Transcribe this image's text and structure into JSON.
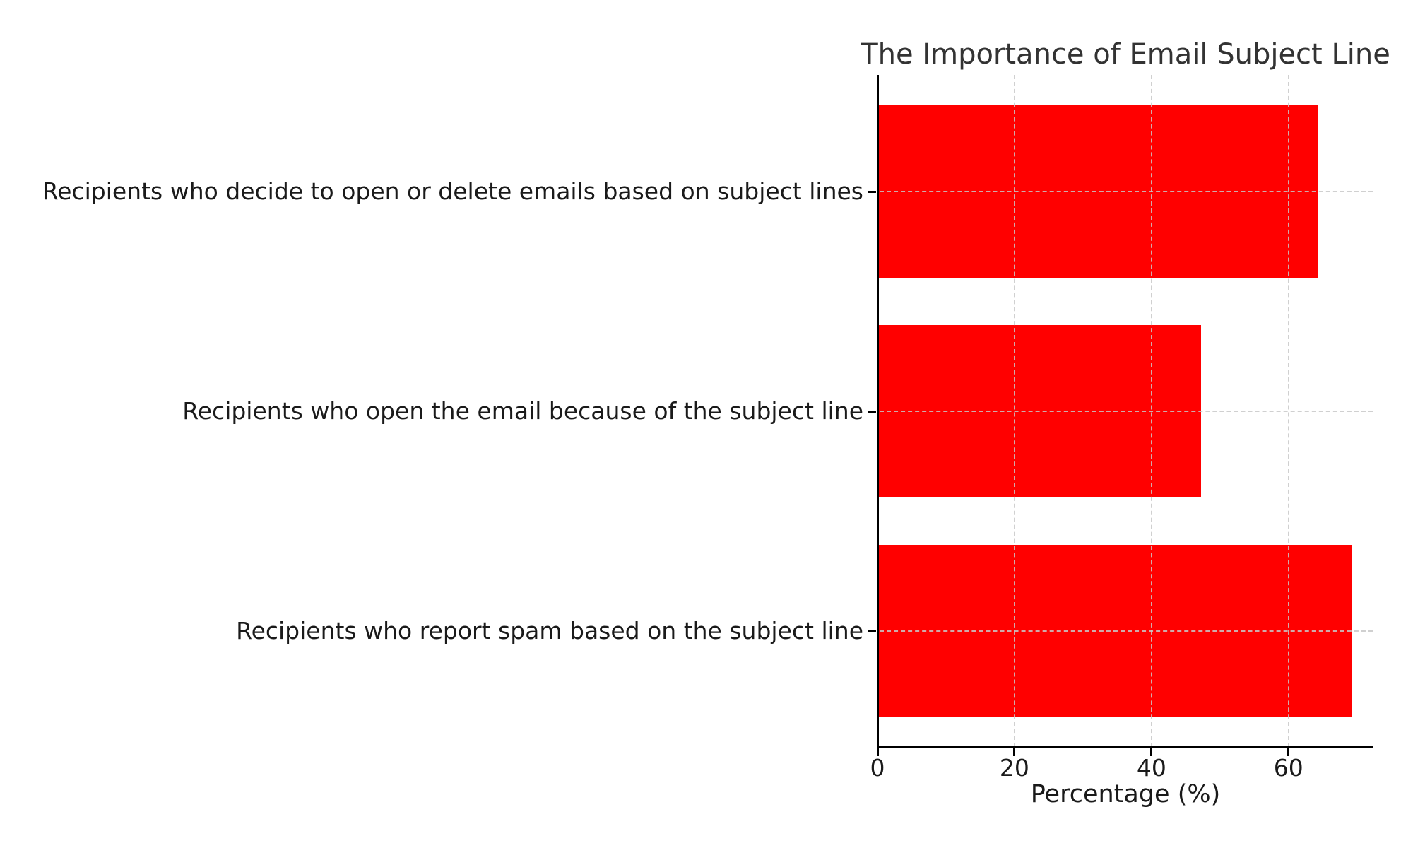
{
  "chart_data": {
    "type": "bar",
    "orientation": "horizontal",
    "title": "The Importance of Email Subject Line",
    "xlabel": "Percentage (%)",
    "categories": [
      "Recipients who decide to open or delete emails based on subject lines",
      "Recipients who open the email because of the subject line",
      "Recipients who report spam based on the subject line"
    ],
    "values": [
      64,
      47,
      69
    ],
    "xticks": [
      0,
      20,
      40,
      60
    ],
    "xtick_labels": [
      "0",
      "20",
      "40",
      "60"
    ],
    "xlim": [
      0,
      72.3
    ],
    "bar_color": "#ff0000",
    "background_color": "#ffffff",
    "text_color": "#1a1a1a",
    "title_color": "#333333",
    "spine_color": "#000000",
    "grid": {
      "visible": true,
      "style": "dashed",
      "color": "#c8c8c8",
      "drawn_over_bars": true
    },
    "legend": null
  }
}
